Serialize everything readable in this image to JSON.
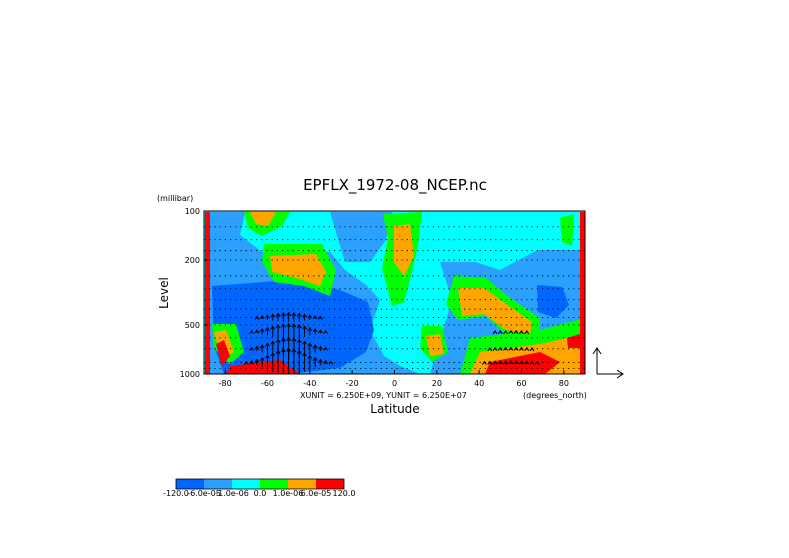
{
  "chart_data": {
    "type": "heatmap",
    "title": "EPFLX_1972-08_NCEP.nc",
    "xlabel": "Latitude",
    "ylabel": "Level",
    "y_units": "(millibar)",
    "x_units": "(degrees_north)",
    "vector_units": "XUNIT = 6.250E+09, YUNIT = 6.250E+07",
    "x_ticks": [
      "-80",
      "-60",
      "-40",
      "-20",
      "0",
      "20",
      "40",
      "60",
      "80"
    ],
    "x_tick_values": [
      -80,
      -60,
      -40,
      -20,
      0,
      20,
      40,
      60,
      80
    ],
    "y_ticks": [
      "100",
      "200",
      "500",
      "1000"
    ],
    "y_tick_values": [
      100,
      200,
      500,
      1000
    ],
    "xlim": [
      -90,
      90
    ],
    "ylim": [
      1000,
      100
    ],
    "y_scale": "log",
    "colorbar": {
      "labels": [
        "-120.0",
        "-6.0e-05",
        "-1.0e-06",
        "0.0",
        "1.0e-06",
        "6.0e-05",
        "120.0"
      ],
      "colors": [
        "#0066ff",
        "#2ba0ff",
        "#00ffff",
        "#00ff00",
        "#ffa500",
        "#ff0000"
      ]
    }
  }
}
